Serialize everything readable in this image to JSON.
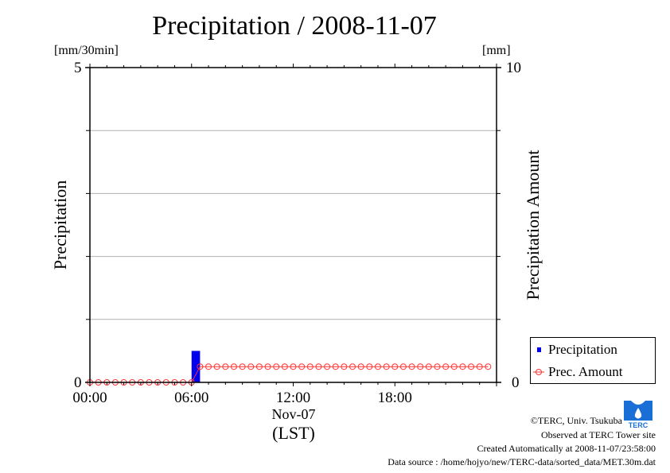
{
  "chart_data": {
    "type": "bar",
    "title": "Precipitation / 2008-11-07",
    "xlabel": "(LST)",
    "x_date_label": "Nov-07",
    "ylabel_left": "Precipitation",
    "ylabel_right": "Precipitation Amount",
    "yunit_left": "[mm/30min]",
    "yunit_right": "[mm]",
    "ylim_left": [
      0,
      5
    ],
    "ylim_right": [
      0,
      10
    ],
    "ytick_labels_left": [
      "0",
      "5"
    ],
    "ytick_labels_right": [
      "0",
      "10"
    ],
    "xlim_hours": [
      0,
      24
    ],
    "xtick_labels": [
      "00:00",
      "06:00",
      "12:00",
      "18:00"
    ],
    "xtick_hours": [
      0,
      6,
      12,
      18
    ],
    "grid": "horizontal",
    "legend_position": "bottom-right-outside",
    "series": [
      {
        "name": "Precipitation",
        "type": "bar",
        "axis": "left",
        "color": "#0000ee",
        "interval_hours": 0.5,
        "values_by_start_hour": [
          {
            "start_hour": 6.0,
            "value": 0.5
          }
        ]
      },
      {
        "name": "Prec. Amount",
        "type": "line",
        "axis": "right",
        "color": "#ff3333",
        "marker": "open-circle",
        "step_hours": 0.5,
        "values": [
          0,
          0,
          0,
          0,
          0,
          0,
          0,
          0,
          0,
          0,
          0,
          0,
          0,
          0.5,
          0.5,
          0.5,
          0.5,
          0.5,
          0.5,
          0.5,
          0.5,
          0.5,
          0.5,
          0.5,
          0.5,
          0.5,
          0.5,
          0.5,
          0.5,
          0.5,
          0.5,
          0.5,
          0.5,
          0.5,
          0.5,
          0.5,
          0.5,
          0.5,
          0.5,
          0.5,
          0.5,
          0.5,
          0.5,
          0.5,
          0.5,
          0.5,
          0.5,
          0.5
        ]
      }
    ]
  },
  "legend": {
    "items": [
      {
        "label": "Precipitation",
        "color": "#0000ee"
      },
      {
        "label": "Prec. Amount",
        "color": "#ff3333"
      }
    ]
  },
  "credits": {
    "copyright": "©TERC, Univ. Tsukuba",
    "observed": "Observed at TERC Tower site",
    "created": "Created Automatically at 2008-11-07/23:58:00",
    "source": "Data source : /home/hojyo/new/TERC-data/sorted_data/MET.30m.dat"
  },
  "logo": {
    "text": "TERC",
    "color": "#1a6fd6",
    "icon": "terc-water-drop-logo"
  }
}
